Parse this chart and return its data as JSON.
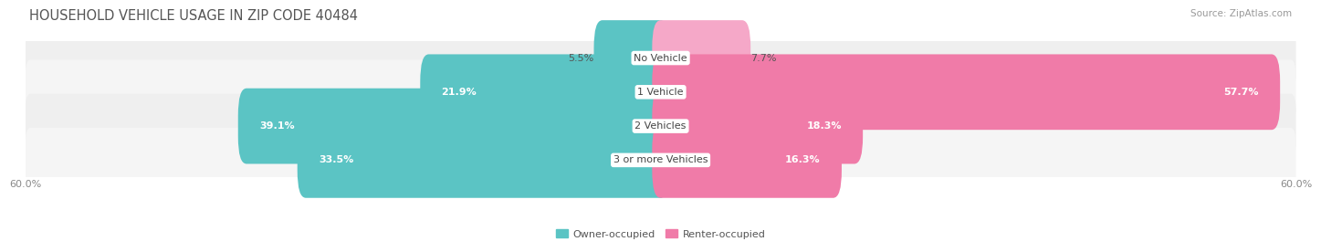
{
  "title": "HOUSEHOLD VEHICLE USAGE IN ZIP CODE 40484",
  "source": "Source: ZipAtlas.com",
  "categories": [
    "No Vehicle",
    "1 Vehicle",
    "2 Vehicles",
    "3 or more Vehicles"
  ],
  "owner_values": [
    5.5,
    21.9,
    39.1,
    33.5
  ],
  "renter_values": [
    7.7,
    57.7,
    18.3,
    16.3
  ],
  "owner_color": "#5BC4C4",
  "renter_color": "#F07BA8",
  "renter_color_light": "#F5A8C8",
  "row_bg_color": "#F0F0F0",
  "row_bg_color2": "#F8F8F8",
  "max_value": 60.0,
  "x_tick_left": "60.0%",
  "x_tick_right": "60.0%",
  "title_fontsize": 10.5,
  "source_fontsize": 7.5,
  "label_fontsize": 8,
  "category_fontsize": 8
}
